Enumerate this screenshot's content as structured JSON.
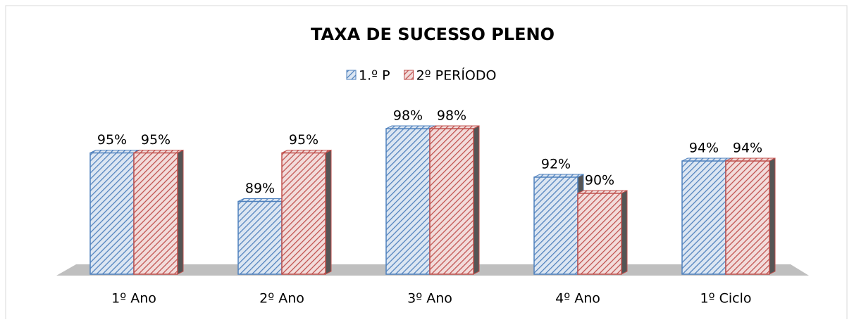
{
  "chart_data": {
    "type": "bar3d",
    "title": "TAXA DE SUCESSO PLENO",
    "categories": [
      "1º Ano",
      "2º Ano",
      "3º Ano",
      "4º Ano",
      "1º Ciclo"
    ],
    "series": [
      {
        "name": "1.º P",
        "color": "#4f81bd",
        "values": [
          95,
          89,
          98,
          92,
          94
        ],
        "value_labels": [
          "95%",
          "89%",
          "98%",
          "92%",
          "94%"
        ]
      },
      {
        "name": "2º PERÍODO",
        "color": "#c0504d",
        "values": [
          95,
          95,
          98,
          90,
          94
        ],
        "value_labels": [
          "95%",
          "95%",
          "98%",
          "90%",
          "94%"
        ]
      }
    ],
    "ylim": [
      80,
      100
    ],
    "legend": "top"
  }
}
